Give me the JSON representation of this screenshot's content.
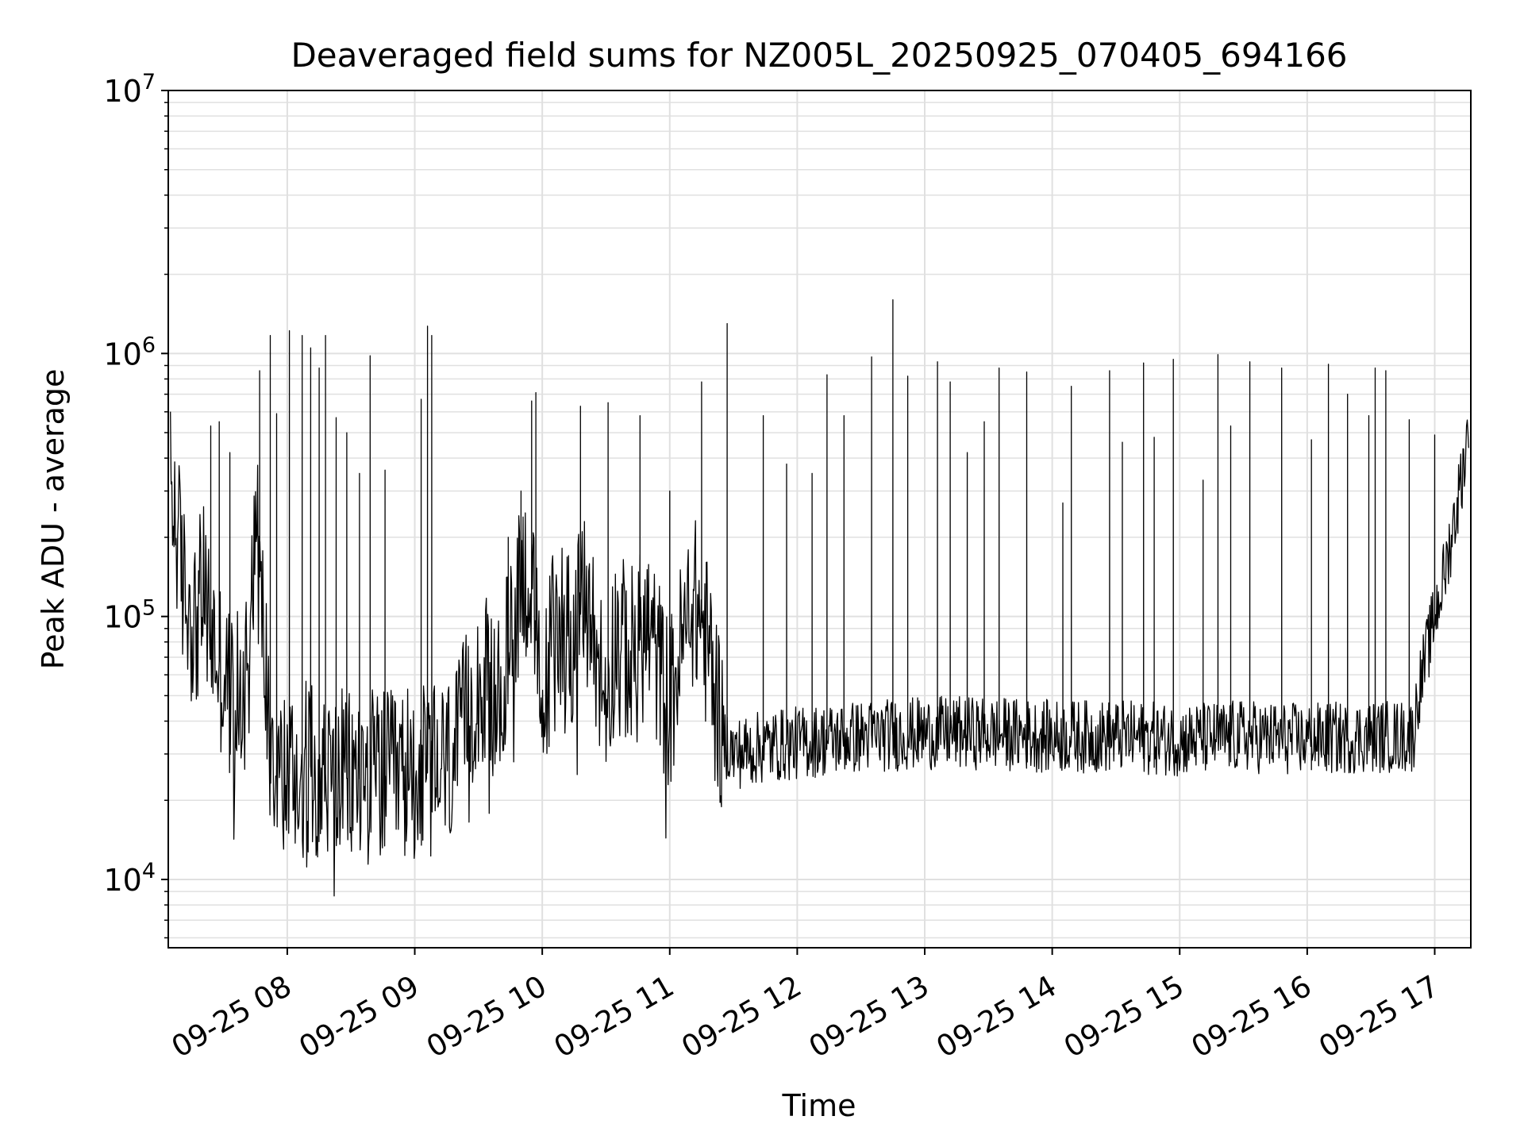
{
  "chart_data": {
    "type": "line",
    "title": "Deaveraged field sums for NZ005L_20250925_070405_694166",
    "xlabel": "Time",
    "ylabel": "Peak ADU - average",
    "yscale": "log",
    "ylim": [
      5500,
      10000000
    ],
    "xlim": [
      "2025-09-25 07:04",
      "2025-09-25 17:17"
    ],
    "grid": "on (major and minor)",
    "line_color": "#000000",
    "grid_color": "#e0e0e0",
    "x_ticks": [
      "2025-09-25 08:00",
      "2025-09-25 09:00",
      "2025-09-25 10:00",
      "2025-09-25 11:00",
      "2025-09-25 12:00",
      "2025-09-25 13:00",
      "2025-09-25 14:00",
      "2025-09-25 15:00",
      "2025-09-25 16:00",
      "2025-09-25 17:00"
    ],
    "x_tick_labels": [
      "09-25 08",
      "09-25 09",
      "09-25 10",
      "09-25 11",
      "09-25 12",
      "09-25 13",
      "09-25 14",
      "09-25 15",
      "09-25 16",
      "09-25 17"
    ],
    "y_ticks": [
      10000,
      100000,
      1000000,
      10000000
    ],
    "y_tick_labels": [
      {
        "base": "10",
        "exp": "4"
      },
      {
        "base": "10",
        "exp": "5"
      },
      {
        "base": "10",
        "exp": "6"
      },
      {
        "base": "10",
        "exp": "7"
      }
    ],
    "series": [
      {
        "color": "#000000",
        "points": [
          [
            "2025-09-25 07:05",
            300000
          ],
          [
            "2025-09-25 07:08",
            220000
          ],
          [
            "2025-09-25 07:11",
            130000
          ],
          [
            "2025-09-25 07:14",
            110000
          ],
          [
            "2025-09-25 07:17",
            90000
          ],
          [
            "2025-09-25 07:20",
            130000
          ],
          [
            "2025-09-25 07:25",
            80000
          ],
          [
            "2025-09-25 07:30",
            60000
          ],
          [
            "2025-09-25 07:35",
            45000
          ],
          [
            "2025-09-25 07:40",
            55000
          ],
          [
            "2025-09-25 07:45",
            250000
          ],
          [
            "2025-09-25 07:50",
            60000
          ],
          [
            "2025-09-25 07:55",
            28000
          ],
          [
            "2025-09-25 08:00",
            25000
          ],
          [
            "2025-09-25 08:10",
            27000
          ],
          [
            "2025-09-25 08:20",
            25000
          ],
          [
            "2025-09-25 08:30",
            24000
          ],
          [
            "2025-09-25 08:40",
            25000
          ],
          [
            "2025-09-25 08:50",
            24000
          ],
          [
            "2025-09-25 09:00",
            26000
          ],
          [
            "2025-09-25 09:10",
            25000
          ],
          [
            "2025-09-25 09:20",
            30000
          ],
          [
            "2025-09-25 09:30",
            60000
          ],
          [
            "2025-09-25 09:40",
            45000
          ],
          [
            "2025-09-25 09:50",
            150000
          ],
          [
            "2025-09-25 09:55",
            130000
          ],
          [
            "2025-09-25 10:00",
            40000
          ],
          [
            "2025-09-25 10:05",
            90000
          ],
          [
            "2025-09-25 10:10",
            100000
          ],
          [
            "2025-09-25 10:15",
            80000
          ],
          [
            "2025-09-25 10:20",
            120000
          ],
          [
            "2025-09-25 10:30",
            50000
          ],
          [
            "2025-09-25 10:35",
            90000
          ],
          [
            "2025-09-25 10:40",
            70000
          ],
          [
            "2025-09-25 10:50",
            90000
          ],
          [
            "2025-09-25 11:00",
            45000
          ],
          [
            "2025-09-25 11:10",
            120000
          ],
          [
            "2025-09-25 11:15",
            95000
          ],
          [
            "2025-09-25 11:20",
            65000
          ],
          [
            "2025-09-25 11:25",
            35000
          ],
          [
            "2025-09-25 11:30",
            30000
          ],
          [
            "2025-09-25 11:45",
            32000
          ],
          [
            "2025-09-25 12:00",
            33000
          ],
          [
            "2025-09-25 12:30",
            35000
          ],
          [
            "2025-09-25 13:00",
            36000
          ],
          [
            "2025-09-25 13:30",
            36000
          ],
          [
            "2025-09-25 14:00",
            35000
          ],
          [
            "2025-09-25 14:30",
            35000
          ],
          [
            "2025-09-25 15:00",
            34000
          ],
          [
            "2025-09-25 15:30",
            35000
          ],
          [
            "2025-09-25 16:00",
            34000
          ],
          [
            "2025-09-25 16:30",
            35000
          ],
          [
            "2025-09-25 16:50",
            35000
          ],
          [
            "2025-09-25 16:52",
            50000
          ],
          [
            "2025-09-25 16:55",
            65000
          ],
          [
            "2025-09-25 17:00",
            100000
          ],
          [
            "2025-09-25 17:05",
            150000
          ],
          [
            "2025-09-25 17:10",
            250000
          ],
          [
            "2025-09-25 17:15",
            450000
          ],
          [
            "2025-09-25 17:16",
            600000
          ]
        ],
        "spikes": [
          [
            "2025-09-25 07:24",
            530000
          ],
          [
            "2025-09-25 07:28",
            550000
          ],
          [
            "2025-09-25 07:33",
            420000
          ],
          [
            "2025-09-25 07:47",
            860000
          ],
          [
            "2025-09-25 07:52",
            1170000
          ],
          [
            "2025-09-25 07:55",
            590000
          ],
          [
            "2025-09-25 08:01",
            1220000
          ],
          [
            "2025-09-25 08:07",
            1170000
          ],
          [
            "2025-09-25 08:11",
            1050000
          ],
          [
            "2025-09-25 08:15",
            880000
          ],
          [
            "2025-09-25 08:18",
            1170000
          ],
          [
            "2025-09-25 08:23",
            570000
          ],
          [
            "2025-09-25 08:28",
            500000
          ],
          [
            "2025-09-25 08:34",
            350000
          ],
          [
            "2025-09-25 08:39",
            980000
          ],
          [
            "2025-09-25 08:46",
            360000
          ],
          [
            "2025-09-25 09:03",
            670000
          ],
          [
            "2025-09-25 09:06",
            1270000
          ],
          [
            "2025-09-25 09:08",
            1170000
          ],
          [
            "2025-09-25 09:44",
            200000
          ],
          [
            "2025-09-25 09:50",
            300000
          ],
          [
            "2025-09-25 09:55",
            660000
          ],
          [
            "2025-09-25 09:57",
            710000
          ],
          [
            "2025-09-25 10:18",
            630000
          ],
          [
            "2025-09-25 10:31",
            650000
          ],
          [
            "2025-09-25 10:46",
            580000
          ],
          [
            "2025-09-25 11:00",
            300000
          ],
          [
            "2025-09-25 11:15",
            780000
          ],
          [
            "2025-09-25 11:27",
            1300000
          ],
          [
            "2025-09-25 11:44",
            580000
          ],
          [
            "2025-09-25 11:55",
            380000
          ],
          [
            "2025-09-25 12:07",
            350000
          ],
          [
            "2025-09-25 12:14",
            830000
          ],
          [
            "2025-09-25 12:22",
            580000
          ],
          [
            "2025-09-25 12:35",
            970000
          ],
          [
            "2025-09-25 12:45",
            1600000
          ],
          [
            "2025-09-25 12:52",
            820000
          ],
          [
            "2025-09-25 13:06",
            930000
          ],
          [
            "2025-09-25 13:12",
            780000
          ],
          [
            "2025-09-25 13:20",
            420000
          ],
          [
            "2025-09-25 13:28",
            550000
          ],
          [
            "2025-09-25 13:35",
            880000
          ],
          [
            "2025-09-25 13:48",
            850000
          ],
          [
            "2025-09-25 14:05",
            270000
          ],
          [
            "2025-09-25 14:09",
            750000
          ],
          [
            "2025-09-25 14:27",
            860000
          ],
          [
            "2025-09-25 14:33",
            460000
          ],
          [
            "2025-09-25 14:43",
            920000
          ],
          [
            "2025-09-25 14:48",
            480000
          ],
          [
            "2025-09-25 14:57",
            950000
          ],
          [
            "2025-09-25 15:11",
            330000
          ],
          [
            "2025-09-25 15:18",
            990000
          ],
          [
            "2025-09-25 15:24",
            530000
          ],
          [
            "2025-09-25 15:33",
            930000
          ],
          [
            "2025-09-25 15:48",
            880000
          ],
          [
            "2025-09-25 16:02",
            470000
          ],
          [
            "2025-09-25 16:10",
            910000
          ],
          [
            "2025-09-25 16:19",
            700000
          ],
          [
            "2025-09-25 16:29",
            580000
          ],
          [
            "2025-09-25 16:32",
            880000
          ],
          [
            "2025-09-25 16:37",
            860000
          ],
          [
            "2025-09-25 16:48",
            560000
          ],
          [
            "2025-09-25 17:00",
            490000
          ]
        ]
      }
    ]
  }
}
